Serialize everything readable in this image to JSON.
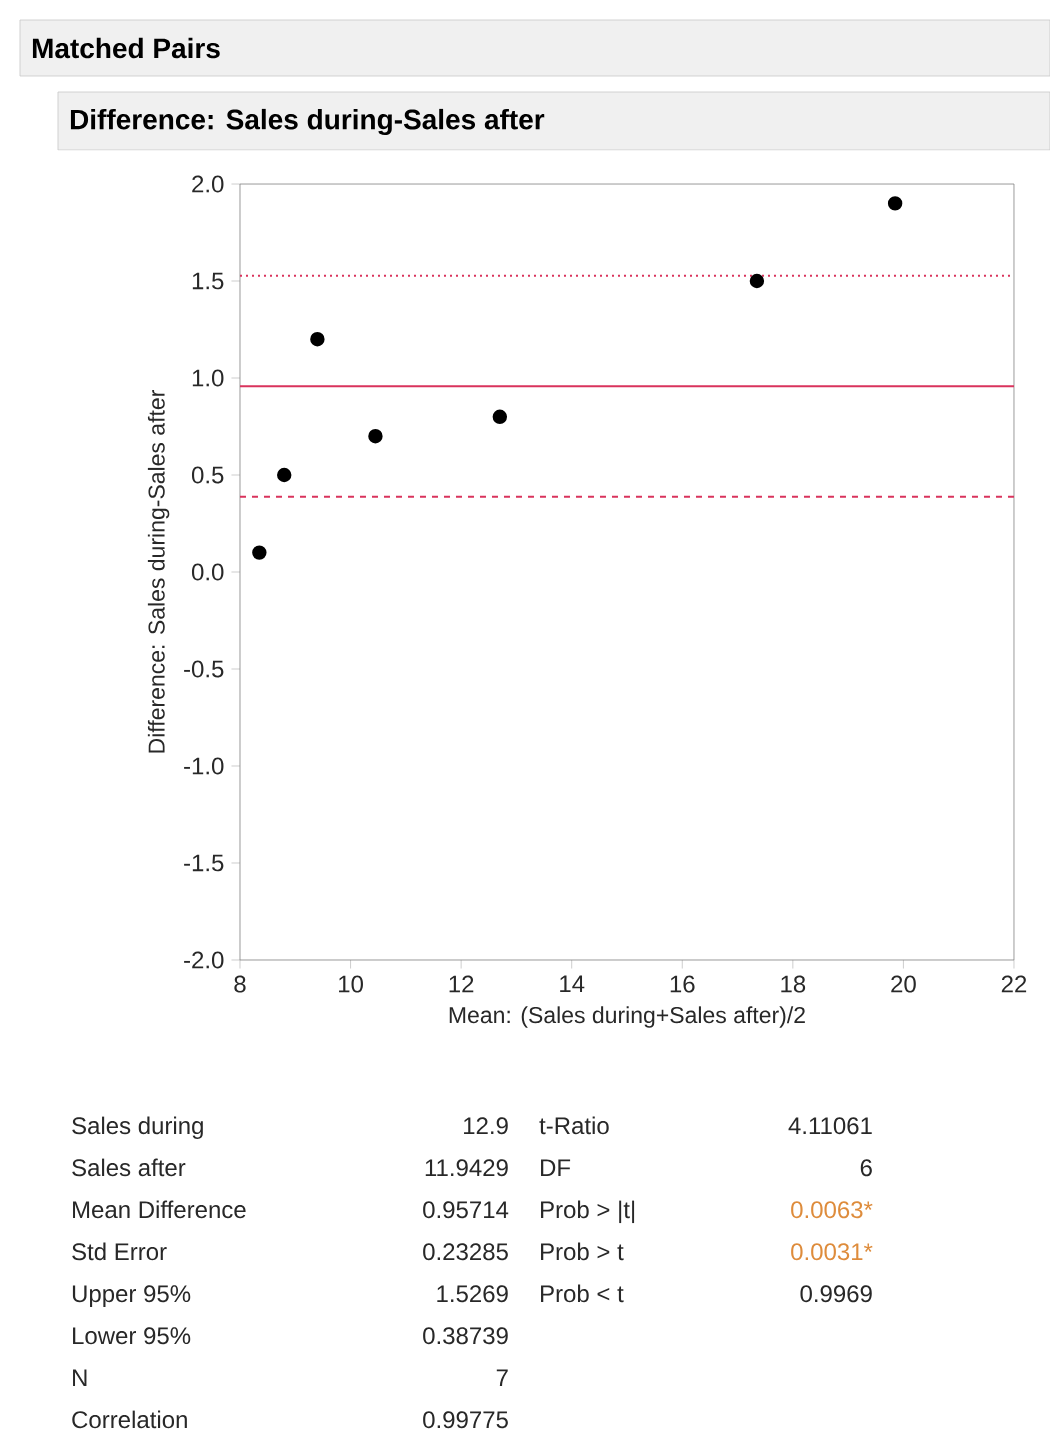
{
  "chart_data": {
    "type": "scatter",
    "title": "Matched Pairs",
    "subtitle": "Difference: Sales during-Sales after",
    "xlabel": "Mean: (Sales during+Sales after)/2",
    "ylabel": "Difference: Sales during-Sales after",
    "x": [
      8.35,
      8.8,
      9.4,
      10.45,
      12.7,
      17.35,
      19.85
    ],
    "series": [
      {
        "color": "#000000",
        "values": [
          0.1,
          0.5,
          1.2,
          0.7,
          0.8,
          1.5,
          1.9
        ]
      }
    ],
    "marker": "circle",
    "xlim": [
      8,
      22
    ],
    "xticks": [
      8,
      10,
      12,
      14,
      16,
      18,
      20,
      22
    ],
    "ylim": [
      -2,
      2
    ],
    "yticks": [
      {
        "value": -2,
        "label": "-2.0"
      },
      {
        "value": -1.5,
        "label": "-1.5"
      },
      {
        "value": -1,
        "label": "-1.0"
      },
      {
        "value": -0.5,
        "label": "-0.5"
      },
      {
        "value": 0,
        "label": "0.0"
      },
      {
        "value": 0.5,
        "label": "0.5"
      },
      {
        "value": 1,
        "label": "1.0"
      },
      {
        "value": 1.5,
        "label": "1.5"
      },
      {
        "value": 2,
        "label": "2.0"
      }
    ],
    "ref_lines": [
      {
        "axis": "y",
        "value": 0.95714,
        "color": "#d9335c",
        "line_style": "solid"
      },
      {
        "axis": "y",
        "value": 1.5269,
        "color": "#d9335c",
        "line_style": "dotted"
      },
      {
        "axis": "y",
        "value": 0.38739,
        "color": "#d9335c",
        "line_style": "dashed"
      }
    ],
    "annotations": [
      "Sales during",
      "Sales after",
      "Mean Difference",
      "Std Error",
      "Upper 95%",
      "Lower 95%",
      "N",
      "Correlation",
      "12.9",
      "11.9429",
      "0.95714",
      "0.23285",
      "1.5269",
      "0.38739",
      "7",
      "0.99775",
      "t-Ratio",
      "DF",
      "Prob > |t|",
      "Prob > t",
      "Prob < t",
      "4.11061",
      "6",
      "0.0063*",
      "0.0031*",
      "0.9969"
    ]
  }
}
